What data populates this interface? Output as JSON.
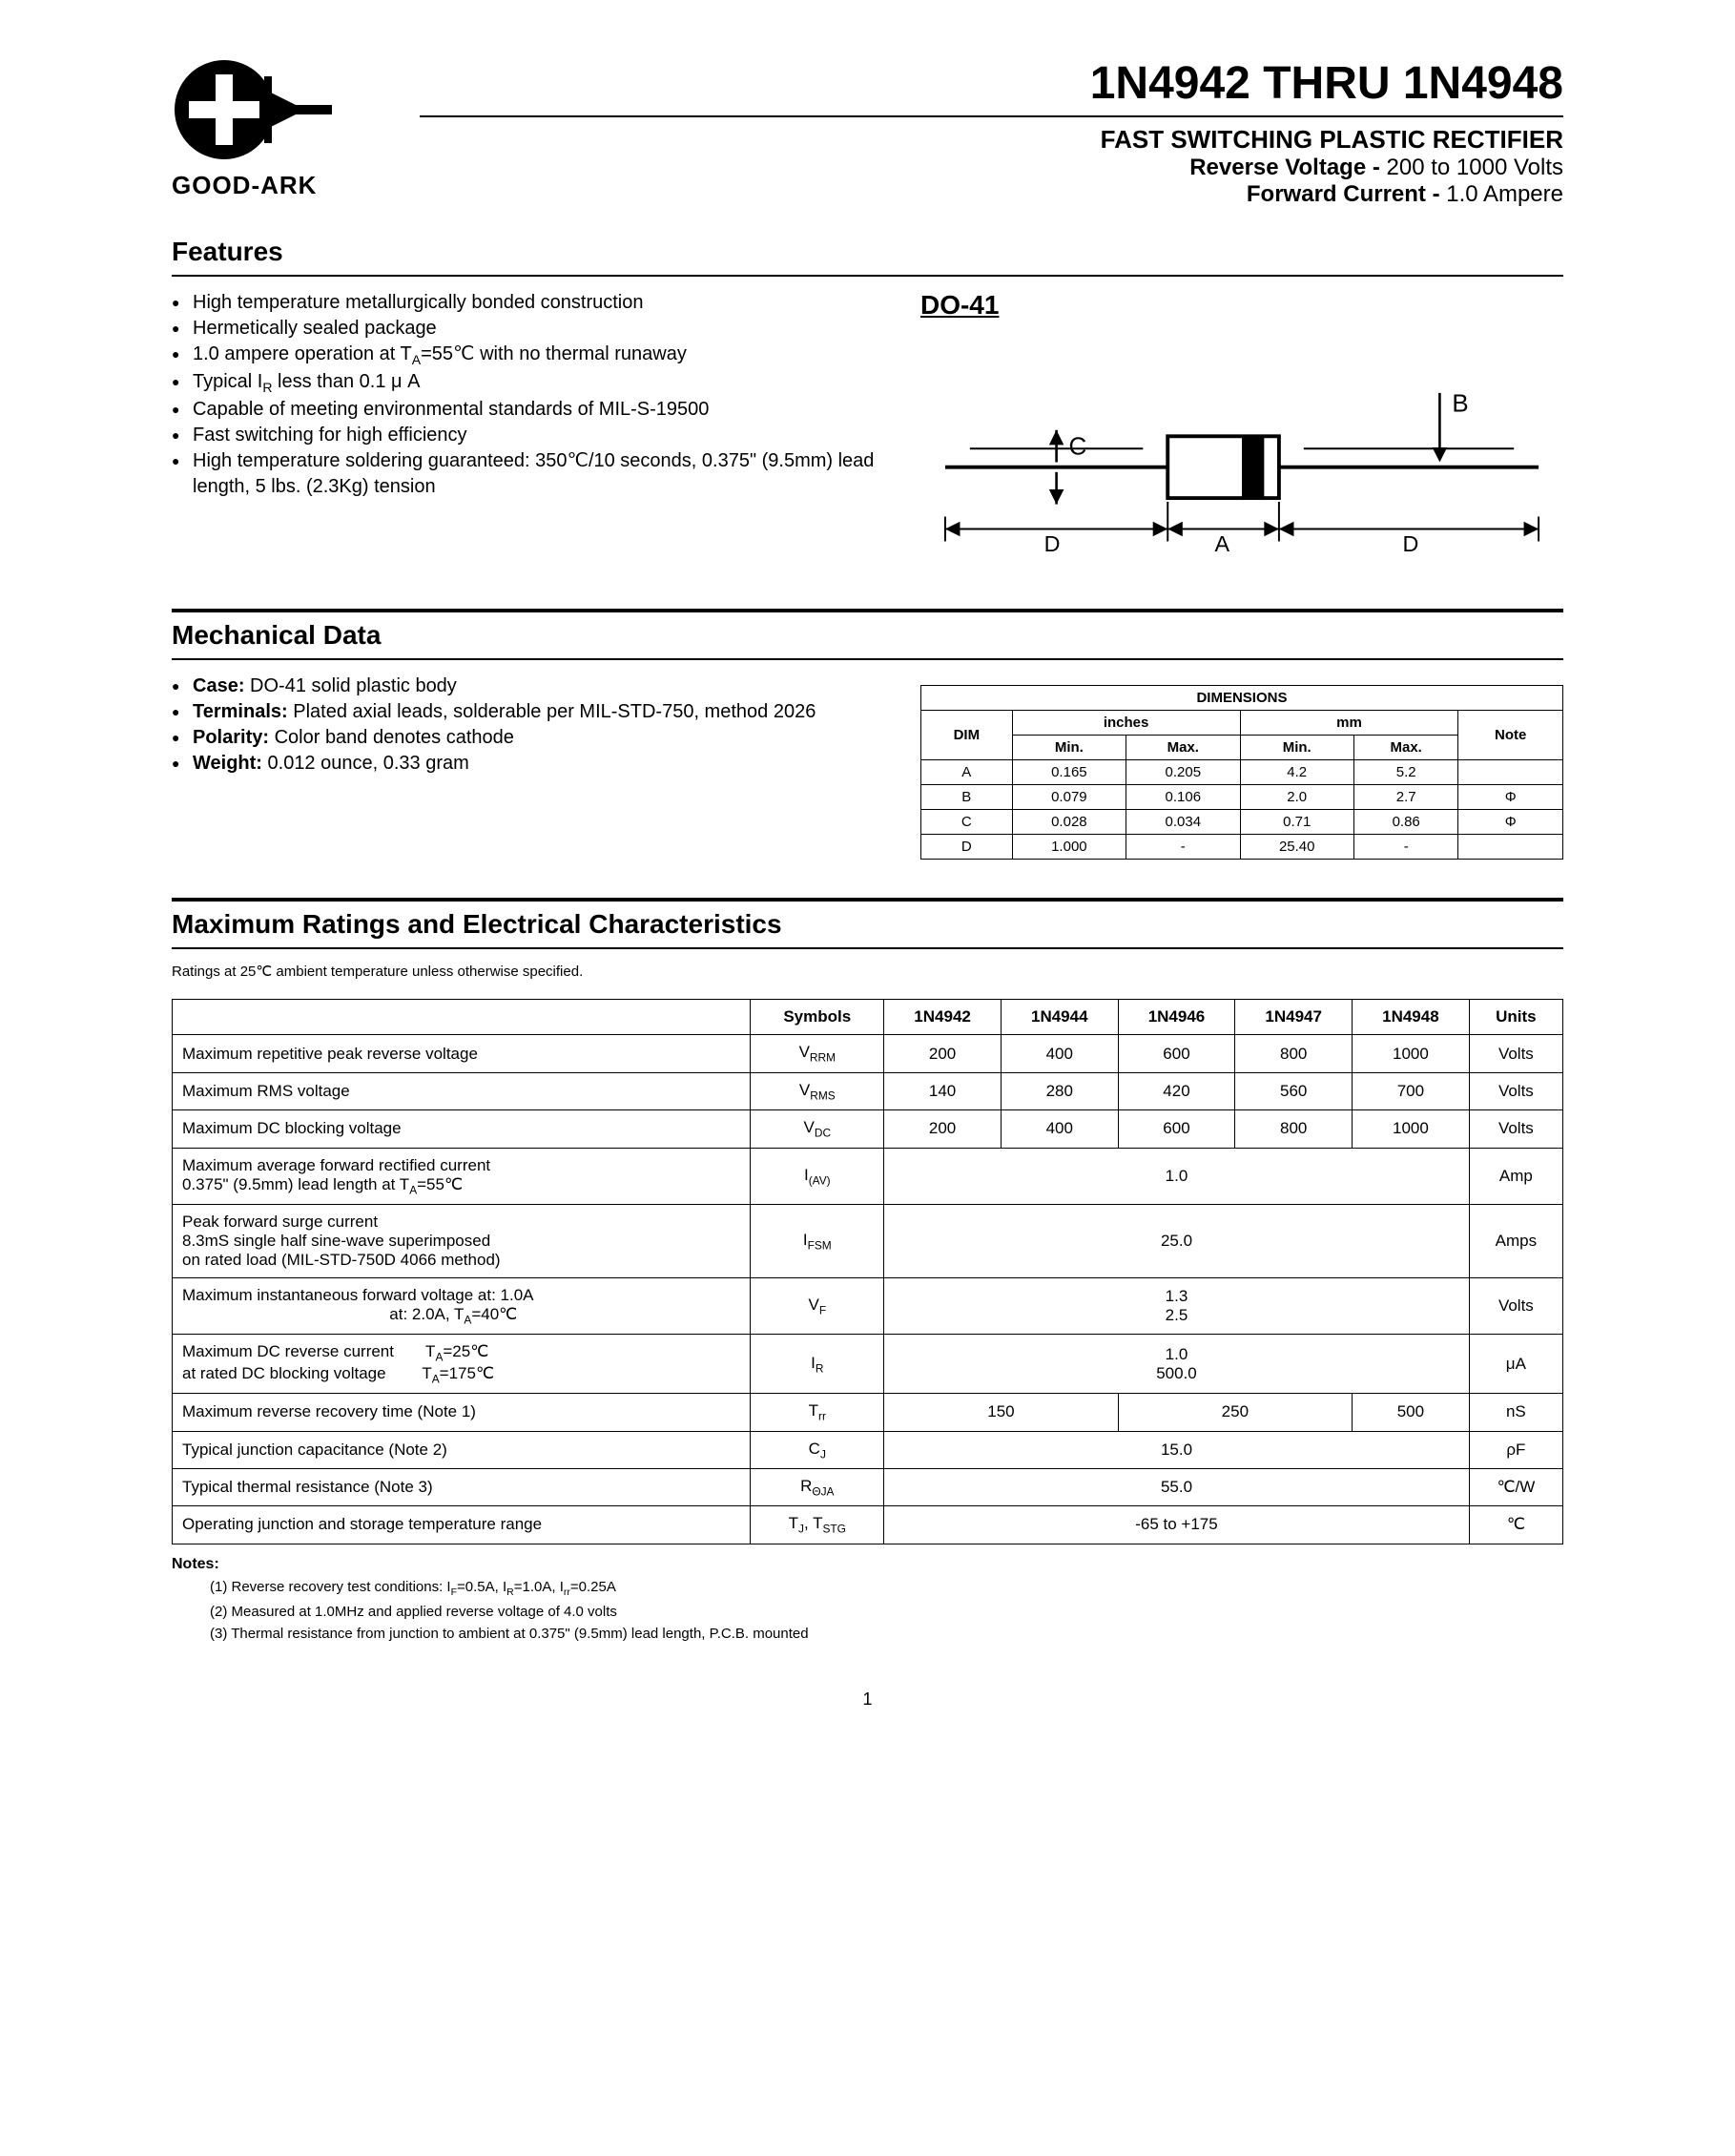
{
  "logo_text": "GOOD-ARK",
  "main_title": "1N4942 THRU 1N4948",
  "subtitle_1": "FAST SWITCHING PLASTIC RECTIFIER",
  "subtitle_2_label": "Reverse Voltage -",
  "subtitle_2_value": " 200 to 1000 Volts",
  "subtitle_3_label": "Forward Current -",
  "subtitle_3_value": "  1.0 Ampere",
  "features_heading": "Features",
  "features": [
    "High temperature metallurgically bonded construction",
    "Hermetically sealed package",
    "1.0 ampere operation at T<sub>A</sub>=55℃ with no thermal runaway",
    "Typical I<sub>R</sub> less than 0.1 μ A",
    "Capable of meeting environmental standards of MIL-S-19500",
    "Fast switching for high efficiency",
    "High temperature soldering guaranteed: 350℃/10 seconds, 0.375\" (9.5mm) lead length, 5 lbs. (2.3Kg) tension"
  ],
  "package_label": "DO-41",
  "mech_heading": "Mechanical Data",
  "mech_items": [
    "<b>Case:</b> DO-41 solid plastic body",
    "<b>Terminals:</b> Plated axial leads, solderable per MIL-STD-750, method 2026",
    "<b>Polarity:</b> Color band denotes cathode",
    "<b>Weight:</b> 0.012 ounce, 0.33 gram"
  ],
  "dim_table": {
    "title": "DIMENSIONS",
    "headers": {
      "dim": "DIM",
      "in": "inches",
      "mm": "mm",
      "note": "Note",
      "min": "Min.",
      "max": "Max."
    },
    "rows": [
      {
        "dim": "A",
        "in_min": "0.165",
        "in_max": "0.205",
        "mm_min": "4.2",
        "mm_max": "5.2",
        "note": ""
      },
      {
        "dim": "B",
        "in_min": "0.079",
        "in_max": "0.106",
        "mm_min": "2.0",
        "mm_max": "2.7",
        "note": "Φ"
      },
      {
        "dim": "C",
        "in_min": "0.028",
        "in_max": "0.034",
        "mm_min": "0.71",
        "mm_max": "0.86",
        "note": "Φ"
      },
      {
        "dim": "D",
        "in_min": "1.000",
        "in_max": "-",
        "mm_min": "25.40",
        "mm_max": "-",
        "note": ""
      }
    ]
  },
  "ratings_heading": "Maximum Ratings and Electrical Characteristics",
  "ratings_note": "Ratings at 25℃ ambient temperature unless otherwise specified.",
  "ratings_headers": [
    "",
    "Symbols",
    "1N4942",
    "1N4944",
    "1N4946",
    "1N4947",
    "1N4948",
    "Units"
  ],
  "ratings_rows": [
    {
      "param": "Maximum repetitive peak reverse voltage",
      "sym": "V<sub>RRM</sub>",
      "v": [
        "200",
        "400",
        "600",
        "800",
        "1000"
      ],
      "span": 1,
      "unit": "Volts"
    },
    {
      "param": "Maximum RMS voltage",
      "sym": "V<sub>RMS</sub>",
      "v": [
        "140",
        "280",
        "420",
        "560",
        "700"
      ],
      "span": 1,
      "unit": "Volts"
    },
    {
      "param": "Maximum DC blocking voltage",
      "sym": "V<sub>DC</sub>",
      "v": [
        "200",
        "400",
        "600",
        "800",
        "1000"
      ],
      "span": 1,
      "unit": "Volts"
    },
    {
      "param": "Maximum average forward rectified current<br>0.375\" (9.5mm) lead length at T<sub>A</sub>=55℃",
      "sym": "I<sub>(AV)</sub>",
      "v": [
        "1.0"
      ],
      "span": 5,
      "unit": "Amp"
    },
    {
      "param": "Peak forward surge current<br>8.3mS single half sine-wave superimposed<br>on rated load (MIL-STD-750D 4066 method)",
      "sym": "I<sub>FSM</sub>",
      "v": [
        "25.0"
      ],
      "span": 5,
      "unit": "Amps"
    },
    {
      "param": "Maximum instantaneous forward voltage at: 1.0A<br>&nbsp;&nbsp;&nbsp;&nbsp;&nbsp;&nbsp;&nbsp;&nbsp;&nbsp;&nbsp;&nbsp;&nbsp;&nbsp;&nbsp;&nbsp;&nbsp;&nbsp;&nbsp;&nbsp;&nbsp;&nbsp;&nbsp;&nbsp;&nbsp;&nbsp;&nbsp;&nbsp;&nbsp;&nbsp;&nbsp;&nbsp;&nbsp;&nbsp;&nbsp;&nbsp;&nbsp;&nbsp;&nbsp;&nbsp;&nbsp;&nbsp;&nbsp;&nbsp;&nbsp;&nbsp;&nbsp;at: 2.0A, T<sub>A</sub>=40℃",
      "sym": "V<sub>F</sub>",
      "v": [
        "1.3<br>2.5"
      ],
      "span": 5,
      "unit": "Volts"
    },
    {
      "param": "Maximum DC reverse current&nbsp;&nbsp;&nbsp;&nbsp;&nbsp;&nbsp;&nbsp;T<sub>A</sub>=25℃<br>at rated DC blocking voltage&nbsp;&nbsp;&nbsp;&nbsp;&nbsp;&nbsp;&nbsp;&nbsp;T<sub>A</sub>=175℃",
      "sym": "I<sub>R</sub>",
      "v": [
        "1.0<br>500.0"
      ],
      "span": 5,
      "unit": "μA"
    },
    {
      "param": "Maximum reverse recovery time (Note 1)",
      "sym": "T<sub>rr</sub>",
      "v": [
        "150",
        "250",
        "500"
      ],
      "spans": [
        2,
        2,
        1
      ],
      "unit": "nS"
    },
    {
      "param": "Typical junction capacitance (Note 2)",
      "sym": "C<sub>J</sub>",
      "v": [
        "15.0"
      ],
      "span": 5,
      "unit": "ρF"
    },
    {
      "param": "Typical thermal resistance (Note 3)",
      "sym": "R<sub>ΘJA</sub>",
      "v": [
        "55.0"
      ],
      "span": 5,
      "unit": "℃/W"
    },
    {
      "param": "Operating junction and storage temperature range",
      "sym": "T<sub>J</sub>, T<sub>STG</sub>",
      "v": [
        "-65 to +175"
      ],
      "span": 5,
      "unit": "℃"
    }
  ],
  "notes_heading": "Notes:",
  "notes": [
    "(1) Reverse recovery test conditions: I<sub>F</sub>=0.5A, I<sub>R</sub>=1.0A, I<sub>rr</sub>=0.25A",
    "(2) Measured at 1.0MHz and applied reverse voltage of 4.0 volts",
    "(3) Thermal resistance from junction to ambient at 0.375\" (9.5mm) lead length, P.C.B. mounted"
  ],
  "page_num": "1",
  "colors": {
    "text": "#000000",
    "bg": "#ffffff",
    "rule": "#000000"
  }
}
